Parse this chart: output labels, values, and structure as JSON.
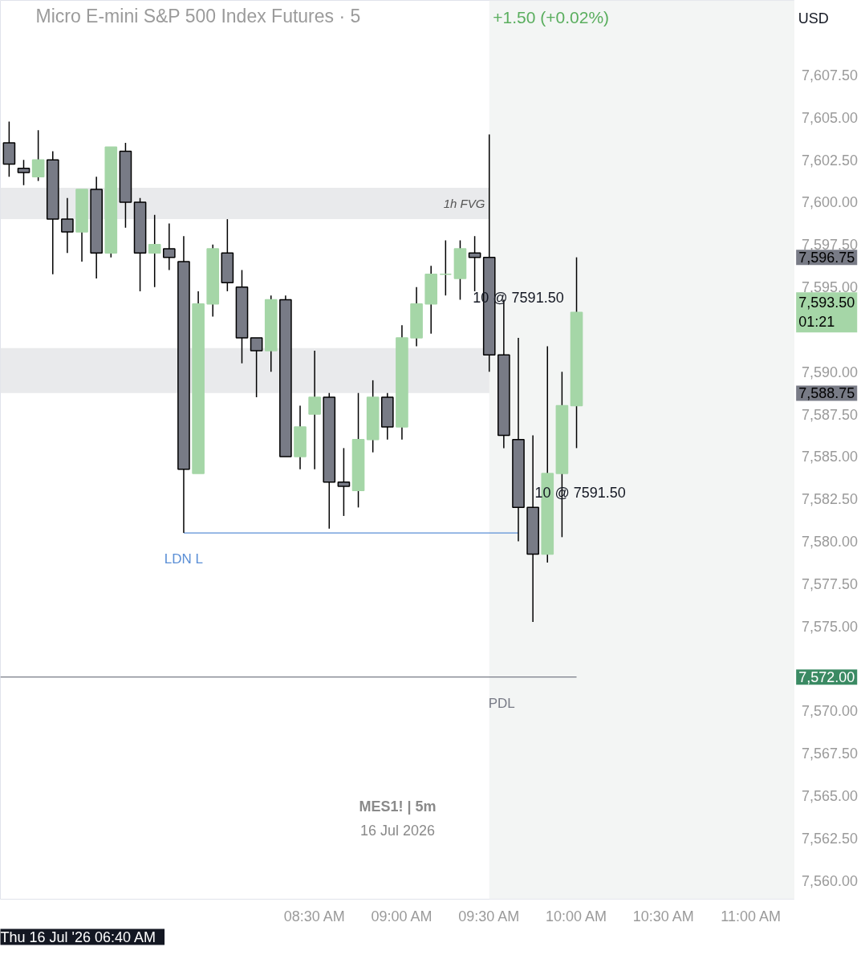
{
  "chart_data": {
    "type": "candlestick",
    "title": "Micro E-mini S&P 500 Index Futures · 5",
    "subtitle": "+1.50 (+0.02%)",
    "x": [
      "2026-07-16T06:45",
      "2026-07-16T06:50",
      "2026-07-16T06:55",
      "2026-07-16T07:00",
      "2026-07-16T07:05",
      "2026-07-16T07:10",
      "2026-07-16T07:15",
      "2026-07-16T07:20",
      "2026-07-16T07:25",
      "2026-07-16T07:30",
      "2026-07-16T07:35",
      "2026-07-16T07:40",
      "2026-07-16T07:45",
      "2026-07-16T07:50",
      "2026-07-16T07:55",
      "2026-07-16T08:00",
      "2026-07-16T08:05",
      "2026-07-16T08:10",
      "2026-07-16T08:15",
      "2026-07-16T08:20",
      "2026-07-16T08:25",
      "2026-07-16T08:30",
      "2026-07-16T08:35",
      "2026-07-16T08:40",
      "2026-07-16T08:45",
      "2026-07-16T08:50",
      "2026-07-16T08:55",
      "2026-07-16T09:00",
      "2026-07-16T09:05",
      "2026-07-16T09:10",
      "2026-07-16T09:15",
      "2026-07-16T09:20",
      "2026-07-16T09:25",
      "2026-07-16T09:30",
      "2026-07-16T09:35",
      "2026-07-16T09:40",
      "2026-07-16T09:45",
      "2026-07-16T09:50",
      "2026-07-16T09:55",
      "2026-07-16T10:00"
    ],
    "ohlc": [
      [
        7603.5,
        7604.75,
        7601.5,
        7602.25
      ],
      [
        7602.0,
        7602.5,
        7601.0,
        7601.75
      ],
      [
        7601.5,
        7604.25,
        7601.25,
        7602.5
      ],
      [
        7602.5,
        7603.0,
        7595.75,
        7599.0
      ],
      [
        7599.0,
        7600.25,
        7597.0,
        7598.25
      ],
      [
        7598.25,
        7600.75,
        7596.5,
        7600.75
      ],
      [
        7600.75,
        7601.5,
        7595.5,
        7597.0
      ],
      [
        7597.0,
        7603.25,
        7596.75,
        7603.25
      ],
      [
        7603.0,
        7603.5,
        7598.5,
        7600.0
      ],
      [
        7600.0,
        7600.25,
        7594.75,
        7597.0
      ],
      [
        7597.0,
        7599.25,
        7595.0,
        7597.5
      ],
      [
        7597.25,
        7598.75,
        7596.0,
        7596.75
      ],
      [
        7596.5,
        7598.0,
        7580.5,
        7584.25
      ],
      [
        7584.0,
        7594.75,
        7584.0,
        7594.0
      ],
      [
        7594.0,
        7597.5,
        7593.25,
        7597.25
      ],
      [
        7597.0,
        7599.0,
        7594.75,
        7595.25
      ],
      [
        7595.0,
        7596.0,
        7590.5,
        7592.0
      ],
      [
        7592.0,
        7592.0,
        7588.5,
        7591.25
      ],
      [
        7591.25,
        7594.5,
        7590.0,
        7594.25
      ],
      [
        7594.25,
        7594.5,
        7585.0,
        7585.0
      ],
      [
        7585.0,
        7588.0,
        7584.25,
        7586.75
      ],
      [
        7587.5,
        7591.25,
        7584.25,
        7588.5
      ],
      [
        7588.5,
        7588.75,
        7580.75,
        7583.5
      ],
      [
        7583.5,
        7585.5,
        7581.5,
        7583.25
      ],
      [
        7583.0,
        7588.75,
        7582.0,
        7586.0
      ],
      [
        7586.0,
        7589.5,
        7585.25,
        7588.5
      ],
      [
        7588.5,
        7588.75,
        7586.0,
        7586.75
      ],
      [
        7586.75,
        7592.75,
        7586.0,
        7592.0
      ],
      [
        7592.0,
        7595.0,
        7591.5,
        7594.0
      ],
      [
        7594.0,
        7596.25,
        7592.25,
        7595.75
      ],
      [
        7595.75,
        7597.75,
        7594.5,
        7595.75
      ],
      [
        7595.5,
        7597.75,
        7594.25,
        7597.25
      ],
      [
        7597.0,
        7598.0,
        7594.75,
        7596.75
      ],
      [
        7596.75,
        7604.0,
        7590.0,
        7591.0
      ],
      [
        7591.0,
        7594.25,
        7585.5,
        7586.25
      ],
      [
        7586.0,
        7592.0,
        7580.0,
        7582.0
      ],
      [
        7582.0,
        7586.25,
        7575.25,
        7579.25
      ],
      [
        7579.25,
        7591.5,
        7578.75,
        7584.0
      ],
      [
        7584.0,
        7590.0,
        7580.25,
        7588.0
      ],
      [
        7588.0,
        7596.75,
        7585.5,
        7593.5
      ]
    ],
    "colors": [
      "#787b86",
      "#787b86",
      "#a5d6a7",
      "#787b86",
      "#787b86",
      "#a5d6a7",
      "#787b86",
      "#a5d6a7",
      "#787b86",
      "#787b86",
      "#a5d6a7",
      "#787b86",
      "#787b86",
      "#a5d6a7",
      "#a5d6a7",
      "#787b86",
      "#787b86",
      "#787b86",
      "#a5d6a7",
      "#787b86",
      "#a5d6a7",
      "#a5d6a7",
      "#787b86",
      "#787b86",
      "#a5d6a7",
      "#a5d6a7",
      "#787b86",
      "#a5d6a7",
      "#a5d6a7",
      "#a5d6a7",
      "#a5d6a7",
      "#a5d6a7",
      "#787b86",
      "#787b86",
      "#787b86",
      "#787b86",
      "#787b86",
      "#a5d6a7",
      "#a5d6a7",
      "#a5d6a7"
    ],
    "series": [
      {
        "type": "line",
        "name": "LDN L",
        "color": "#5b8fd6",
        "x": [
          "2026-07-16T07:45",
          "2026-07-16T09:40"
        ],
        "values": [
          7580.5,
          7580.5
        ]
      },
      {
        "type": "line",
        "name": "PDL",
        "color": "#787b86",
        "x": [
          "2026-07-16T06:42",
          "2026-07-16T10:00"
        ],
        "values": [
          7572.0,
          7572.0
        ]
      }
    ],
    "bands": [
      {
        "axis": "y",
        "from": 7599.0,
        "to": 7600.85,
        "label": "1h FVG",
        "color": "#e9eaec"
      },
      {
        "axis": "y",
        "from": 7588.75,
        "to": 7591.4,
        "color": "#e9eaec"
      },
      {
        "axis": "x",
        "from": "2026-07-16T09:30",
        "to": "2026-07-16T11:15",
        "color": "#f3f5f4"
      }
    ],
    "xlim": [
      "2026-07-16T06:42",
      "2026-07-16T11:15"
    ],
    "xticks": [
      {
        "value": "2026-07-16T08:30",
        "label": "08:30 AM"
      },
      {
        "value": "2026-07-16T09:00",
        "label": "09:00 AM"
      },
      {
        "value": "2026-07-16T09:30",
        "label": "09:30 AM"
      },
      {
        "value": "2026-07-16T10:00",
        "label": "10:00 AM"
      },
      {
        "value": "2026-07-16T10:30",
        "label": "10:30 AM"
      },
      {
        "value": "2026-07-16T11:00",
        "label": "11:00 AM"
      }
    ],
    "ylim": [
      7558.9,
      7611.9
    ],
    "yticks": [
      {
        "value": 7560,
        "label": "7,560.00"
      },
      {
        "value": 7562.5,
        "label": "7,562.50"
      },
      {
        "value": 7565,
        "label": "7,565.00"
      },
      {
        "value": 7567.5,
        "label": "7,567.50"
      },
      {
        "value": 7570,
        "label": "7,570.00"
      },
      {
        "value": 7575,
        "label": "7,575.00"
      },
      {
        "value": 7577.5,
        "label": "7,577.50"
      },
      {
        "value": 7580,
        "label": "7,580.00"
      },
      {
        "value": 7582.5,
        "label": "7,582.50"
      },
      {
        "value": 7585,
        "label": "7,585.00"
      },
      {
        "value": 7587.5,
        "label": "7,587.50"
      },
      {
        "value": 7590,
        "label": "7,590.00"
      },
      {
        "value": 7595,
        "label": "7,595.00"
      },
      {
        "value": 7597.5,
        "label": "7,597.50"
      },
      {
        "value": 7600,
        "label": "7,600.00"
      },
      {
        "value": 7602.5,
        "label": "7,602.50"
      },
      {
        "value": 7605,
        "label": "7,605.00"
      },
      {
        "value": 7607.5,
        "label": "7,607.50"
      }
    ],
    "annotations": [
      "MES1! | 5m",
      "16 Jul 2026",
      "Thu 16 Jul '26   06:40 AM",
      "USD",
      "10 @ 7591.50",
      "10 @ 7591.50",
      "7,596.75",
      "7,593.50\n01:21",
      "7,588.75",
      "7,572.00"
    ]
  }
}
